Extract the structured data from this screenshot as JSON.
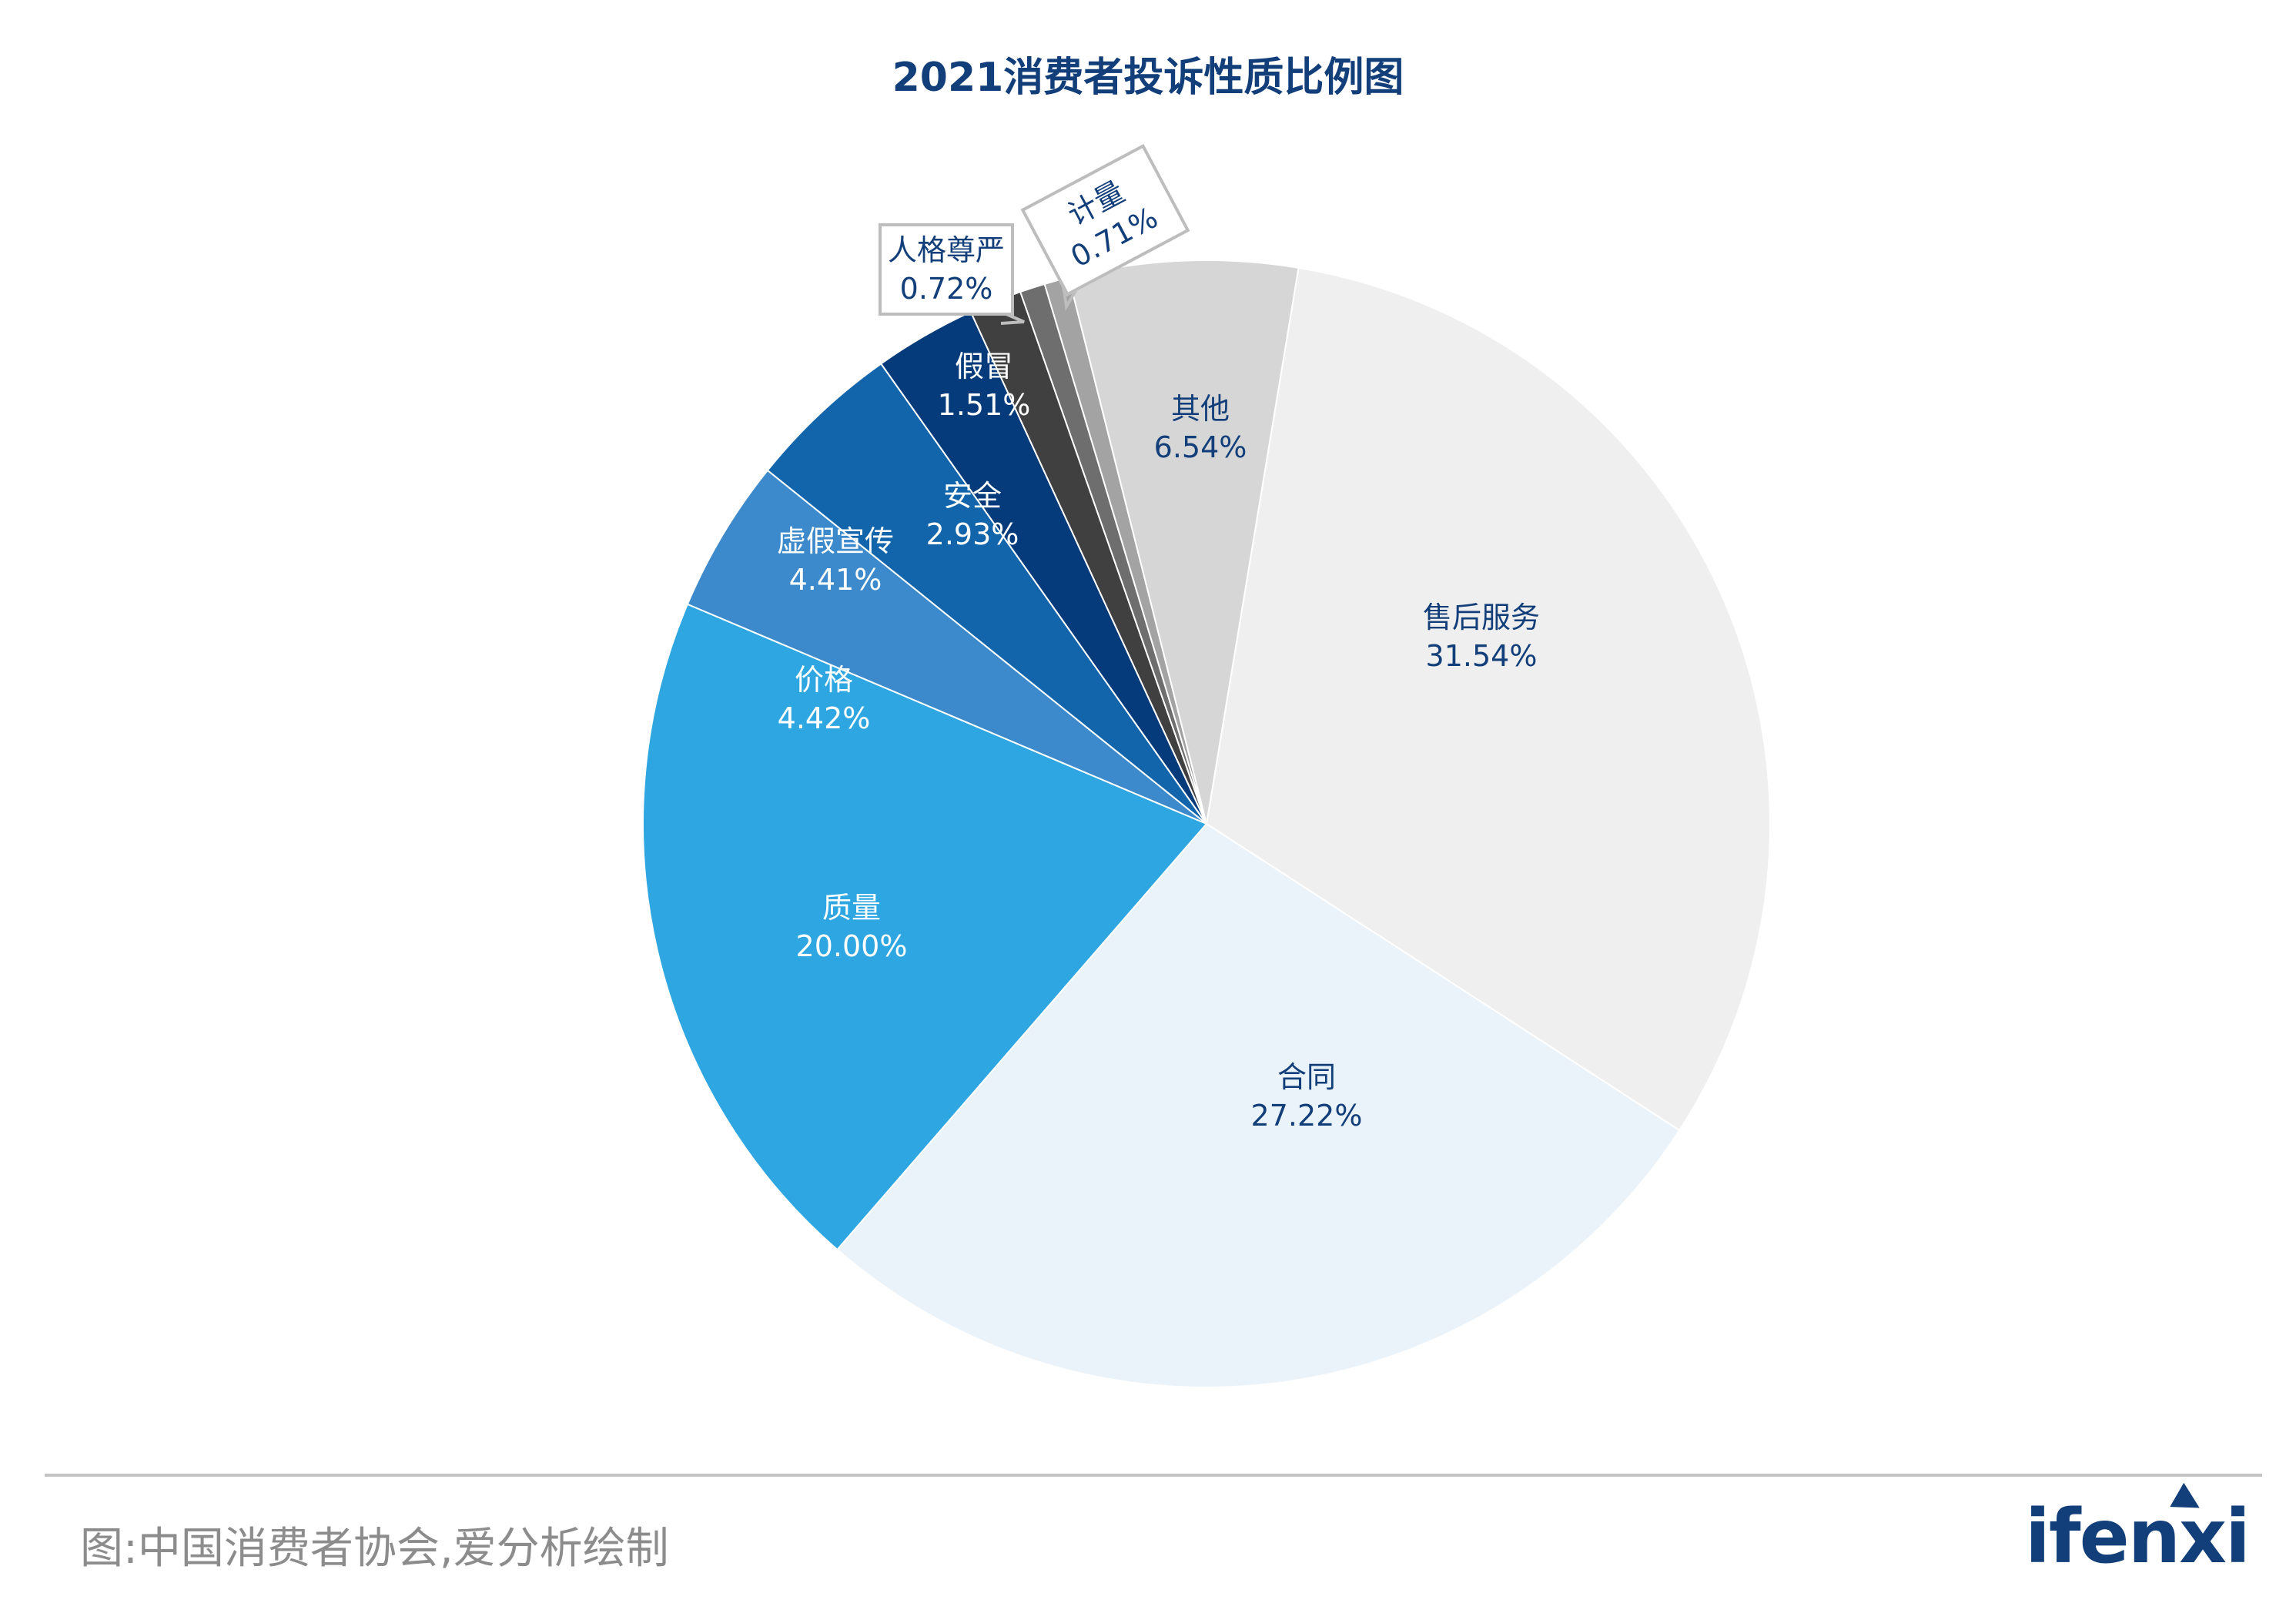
{
  "chart_data": {
    "type": "pie",
    "title": "2021消费者投诉性质比例图",
    "slices": [
      {
        "label": "售后服务",
        "value": 31.54,
        "display": "31.54%",
        "color": "#efefef"
      },
      {
        "label": "合同",
        "value": 27.22,
        "display": "27.22%",
        "color": "#ebf3fa"
      },
      {
        "label": "质量",
        "value": 20.0,
        "display": "20.00%",
        "color": "#2ea6e2"
      },
      {
        "label": "价格",
        "value": 4.42,
        "display": "4.42%",
        "color": "#3c8acb"
      },
      {
        "label": "虚假宣传",
        "value": 4.41,
        "display": "4.41%",
        "color": "#1265ab"
      },
      {
        "label": "安全",
        "value": 2.93,
        "display": "2.93%",
        "color": "#053b7a"
      },
      {
        "label": "假冒",
        "value": 1.51,
        "display": "1.51%",
        "color": "#404040"
      },
      {
        "label": "人格尊严",
        "value": 0.72,
        "display": "0.72%",
        "color": "#6d6e6d"
      },
      {
        "label": "计量",
        "value": 0.71,
        "display": "0.71%",
        "color": "#a3a3a3"
      },
      {
        "label": "其他",
        "value": 6.54,
        "display": "6.54%",
        "color": "#d6d6d6"
      }
    ],
    "legend": "none (data labels on slices)"
  },
  "footer": {
    "source": "图:中国消费者协会,爱分析绘制",
    "logo": "ifenxi"
  },
  "colors": {
    "title": "#123e7a",
    "label_dark": "#123e7a",
    "source_text": "#8c8c8c"
  }
}
